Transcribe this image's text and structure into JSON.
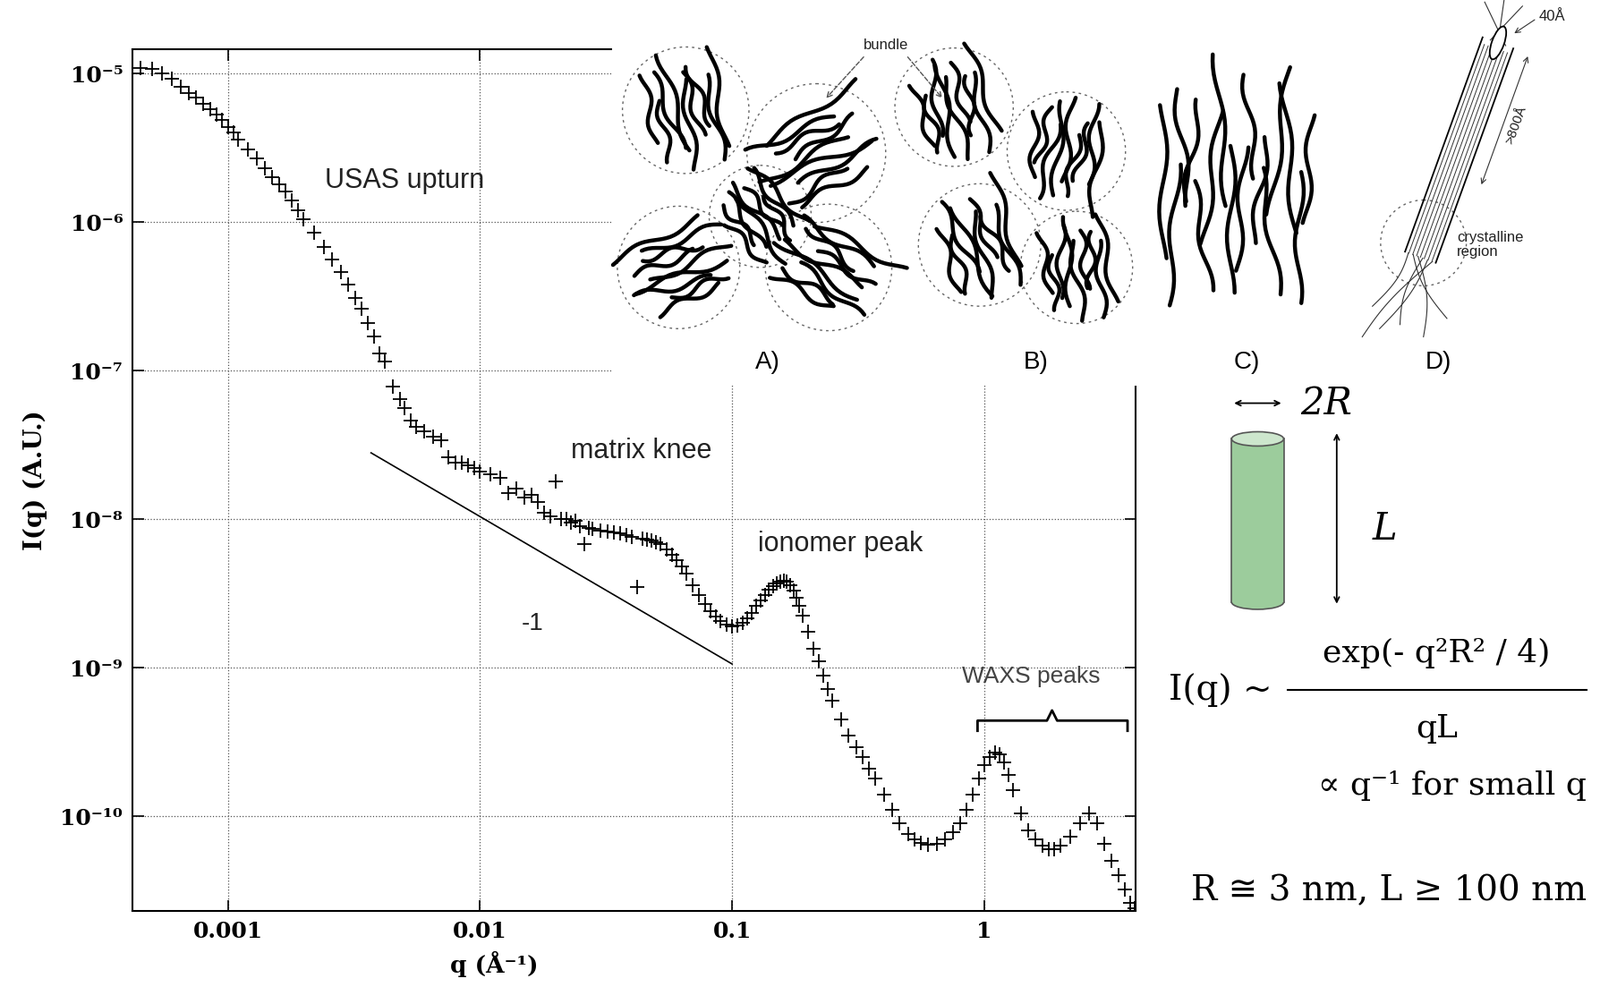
{
  "chart_data": {
    "type": "scatter",
    "xlabel": "q (Å⁻¹)",
    "ylabel": "I(q) (A.U.)",
    "log": true,
    "grid": true,
    "xlim": [
      0.00042,
      4.0
    ],
    "ylim": [
      2.3e-11,
      1.46e-05
    ],
    "xticks": [
      0.001,
      0.01,
      0.1,
      1
    ],
    "yticks": [
      {
        "value": 1e-10,
        "label": "10⁻¹⁰"
      },
      {
        "value": 1e-09,
        "label": "10⁻⁹"
      },
      {
        "value": 1e-08,
        "label": "10⁻⁸"
      },
      {
        "value": 1e-07,
        "label": "10⁻⁷"
      },
      {
        "value": 1e-06,
        "label": "10⁻⁶"
      },
      {
        "value": 1e-05,
        "label": "10⁻⁵"
      }
    ],
    "series": [
      {
        "type": "scatter",
        "marker": "plus",
        "color": "#000000",
        "x": [
          0.00045,
          0.0005,
          0.00055,
          0.0006,
          0.00065,
          0.0007,
          0.00075,
          0.0008,
          0.00085,
          0.0009,
          0.00095,
          0.001,
          0.00105,
          0.0011,
          0.0012,
          0.0013,
          0.0014,
          0.0015,
          0.0016,
          0.0017,
          0.0018,
          0.0019,
          0.002,
          0.0022,
          0.0024,
          0.0026,
          0.0028,
          0.003,
          0.0032,
          0.0034,
          0.0036,
          0.0038,
          0.004,
          0.0042,
          0.0045,
          0.0048,
          0.005,
          0.0053,
          0.0056,
          0.006,
          0.0065,
          0.007,
          0.0075,
          0.008,
          0.0085,
          0.009,
          0.0095,
          0.01,
          0.011,
          0.012,
          0.013,
          0.014,
          0.015,
          0.016,
          0.017,
          0.018,
          0.019,
          0.02,
          0.021,
          0.022,
          0.023,
          0.024,
          0.025,
          0.026,
          0.027,
          0.028,
          0.03,
          0.032,
          0.034,
          0.036,
          0.038,
          0.04,
          0.042,
          0.044,
          0.046,
          0.048,
          0.05,
          0.052,
          0.055,
          0.058,
          0.06,
          0.063,
          0.066,
          0.07,
          0.074,
          0.078,
          0.082,
          0.086,
          0.09,
          0.095,
          0.1,
          0.105,
          0.11,
          0.115,
          0.12,
          0.125,
          0.13,
          0.135,
          0.14,
          0.145,
          0.15,
          0.155,
          0.16,
          0.165,
          0.17,
          0.175,
          0.18,
          0.185,
          0.19,
          0.2,
          0.21,
          0.22,
          0.23,
          0.24,
          0.25,
          0.27,
          0.29,
          0.31,
          0.33,
          0.35,
          0.37,
          0.4,
          0.43,
          0.46,
          0.5,
          0.53,
          0.56,
          0.6,
          0.65,
          0.7,
          0.75,
          0.8,
          0.85,
          0.9,
          0.95,
          1.0,
          1.05,
          1.1,
          1.15,
          1.2,
          1.25,
          1.3,
          1.4,
          1.5,
          1.6,
          1.7,
          1.8,
          1.9,
          2.0,
          2.2,
          2.4,
          2.6,
          2.8,
          3.0,
          3.2,
          3.4,
          3.6,
          3.8,
          3.95
        ],
        "values": [
          1.1e-05,
          1.08e-05,
          1e-05,
          9.2e-06,
          8.2e-06,
          7.4e-06,
          6.9e-06,
          6.3e-06,
          5.8e-06,
          5.3e-06,
          4.9e-06,
          4.4e-06,
          4e-06,
          3.6e-06,
          3.1e-06,
          2.7e-06,
          2.3e-06,
          2e-06,
          1.8e-06,
          1.6e-06,
          1.4e-06,
          1.2e-06,
          1.05e-06,
          8.5e-07,
          6.8e-07,
          5.6e-07,
          4.6e-07,
          3.8e-07,
          3.1e-07,
          2.6e-07,
          2.1e-07,
          1.7e-07,
          1.3e-07,
          1.15e-07,
          7.8e-08,
          6.4e-08,
          5.6e-08,
          4.6e-08,
          4.2e-08,
          3.9e-08,
          3.6e-08,
          3.4e-08,
          2.6e-08,
          2.4e-08,
          2.4e-08,
          2.3e-08,
          2.2e-08,
          2.1e-08,
          2e-08,
          1.9e-08,
          1.5e-08,
          1.6e-08,
          1.4e-08,
          1.45e-08,
          1.3e-08,
          1.1e-08,
          1.05e-08,
          1.8e-08,
          1e-08,
          1e-08,
          9.5e-09,
          9.8e-09,
          9e-09,
          6.8e-09,
          8.7e-09,
          8.6e-09,
          8.4e-09,
          8.3e-09,
          8.1e-09,
          8e-09,
          7.8e-09,
          7.6e-09,
          3.5e-09,
          7.4e-09,
          7.3e-09,
          7.2e-09,
          7e-09,
          6.8e-09,
          6.3e-09,
          5.8e-09,
          5.3e-09,
          4.8e-09,
          4.3e-09,
          3.6e-09,
          3.1e-09,
          2.7e-09,
          2.4e-09,
          2.2e-09,
          2.05e-09,
          1.95e-09,
          1.9e-09,
          1.92e-09,
          2e-09,
          2.15e-09,
          2.35e-09,
          2.6e-09,
          2.85e-09,
          3.1e-09,
          3.35e-09,
          3.55e-09,
          3.7e-09,
          3.8e-09,
          3.85e-09,
          3.8e-09,
          3.6e-09,
          3.3e-09,
          2.95e-09,
          2.6e-09,
          2.25e-09,
          1.75e-09,
          1.35e-09,
          1.1e-09,
          8.8e-10,
          7.2e-10,
          6e-10,
          4.5e-10,
          3.5e-10,
          2.9e-10,
          2.5e-10,
          2.1e-10,
          1.8e-10,
          1.4e-10,
          1.1e-10,
          9e-11,
          7.6e-11,
          7e-11,
          6.6e-11,
          6.4e-11,
          6.5e-11,
          7e-11,
          7.8e-11,
          9e-11,
          1.1e-10,
          1.4e-10,
          1.8e-10,
          2.2e-10,
          2.5e-10,
          2.7e-10,
          2.6e-10,
          2.3e-10,
          1.9e-10,
          1.5e-10,
          1.05e-10,
          8e-11,
          7e-11,
          6.3e-11,
          6e-11,
          6e-11,
          6.3e-11,
          7.3e-11,
          9e-11,
          1.05e-10,
          9e-11,
          6.5e-11,
          5e-11,
          4e-11,
          3.2e-11,
          2.6e-11,
          2.4e-11
        ]
      },
      {
        "type": "line",
        "line_style": "solid",
        "color": "#000000",
        "x": [
          0.0037,
          0.1
        ],
        "values": [
          2.8e-08,
          1.06e-09
        ]
      }
    ],
    "annotations": [
      "USAS upturn",
      "matrix knee",
      "ionomer peak",
      "-1",
      "WAXS peaks"
    ]
  },
  "illustration": {
    "labels": [
      "A)",
      "B)",
      "C)",
      "D)"
    ],
    "bundle": "bundle",
    "crystalline_region": "crystalline\nregion",
    "diameter": "40Å",
    "length": ">800Å"
  },
  "cylinder": {
    "diameter": "2R",
    "length": "L"
  },
  "formula": {
    "lhs": "I(q) ~",
    "numerator": "exp(- q²R² / 4)",
    "denominator": "qL",
    "limit": "∝ q⁻¹ for small q",
    "values": "R ≅ 3 nm, L ≥ 100 nm"
  }
}
